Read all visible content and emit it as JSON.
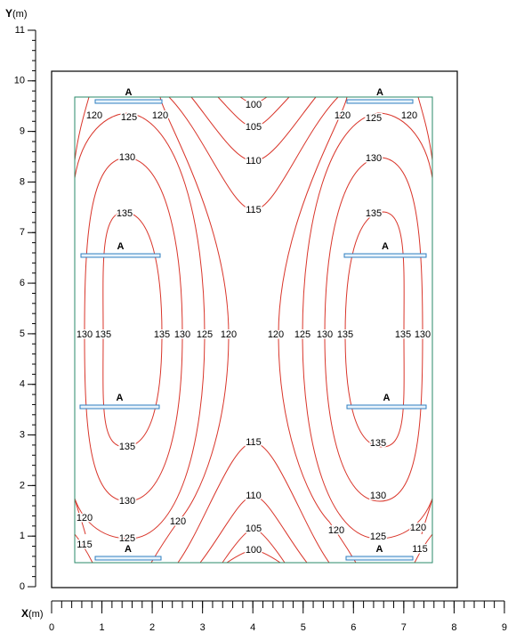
{
  "y_axis": {
    "letter": "Y",
    "unit": "(m)",
    "ticks": [
      0,
      1,
      2,
      3,
      4,
      5,
      6,
      7,
      8,
      9,
      10,
      11
    ]
  },
  "x_axis": {
    "letter": "X",
    "unit": "(m)",
    "ticks": [
      0,
      1,
      2,
      3,
      4,
      5,
      6,
      7,
      8,
      9
    ]
  },
  "luminaires": [
    {
      "label": "A"
    },
    {
      "label": "A"
    },
    {
      "label": "A"
    },
    {
      "label": "A"
    },
    {
      "label": "A"
    },
    {
      "label": "A"
    },
    {
      "label": "A"
    },
    {
      "label": "A"
    }
  ],
  "contours": {
    "levels": [
      100,
      105,
      110,
      115,
      120,
      125,
      130,
      135
    ]
  },
  "contour_labels": [
    120,
    125,
    120,
    130,
    135,
    115,
    110,
    105,
    100,
    130,
    135,
    135,
    130,
    125,
    120,
    135,
    130,
    125,
    120,
    120,
    115,
    115,
    110,
    105,
    100,
    120,
    125,
    120,
    130,
    135,
    130,
    135,
    135,
    130,
    125,
    120,
    135,
    130,
    125,
    120,
    120,
    115
  ]
}
